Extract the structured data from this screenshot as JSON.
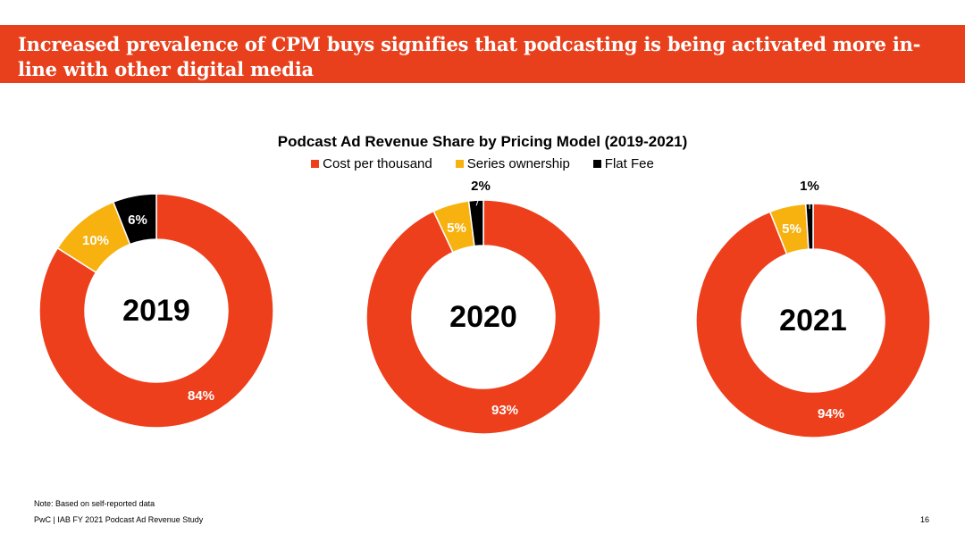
{
  "header": {
    "title": "Increased prevalence of CPM buys signifies that podcasting is being activated more in-line with other digital media"
  },
  "colors": {
    "banner": "#e8401c",
    "cpm": "#ee3f1c",
    "series": "#f7b20f",
    "flat": "#000000"
  },
  "chart_data": {
    "type": "pie",
    "title": "Podcast Ad Revenue Share by Pricing Model (2019-2021)",
    "legend_position": "top-center",
    "series_names": [
      "Cost per thousand",
      "Series ownership",
      "Flat Fee"
    ],
    "charts": [
      {
        "year": "2019",
        "values": [
          84,
          10,
          6
        ],
        "labels": [
          "84%",
          "10%",
          "6%"
        ]
      },
      {
        "year": "2020",
        "values": [
          93,
          5,
          2
        ],
        "labels": [
          "93%",
          "5%",
          "2%"
        ]
      },
      {
        "year": "2021",
        "values": [
          94,
          5,
          1
        ],
        "labels": [
          "94%",
          "5%",
          "1%"
        ]
      }
    ]
  },
  "footer": {
    "note": "Note: Based on self-reported data",
    "source": "PwC  |  IAB FY 2021 Podcast Ad Revenue Study",
    "page": "16"
  }
}
